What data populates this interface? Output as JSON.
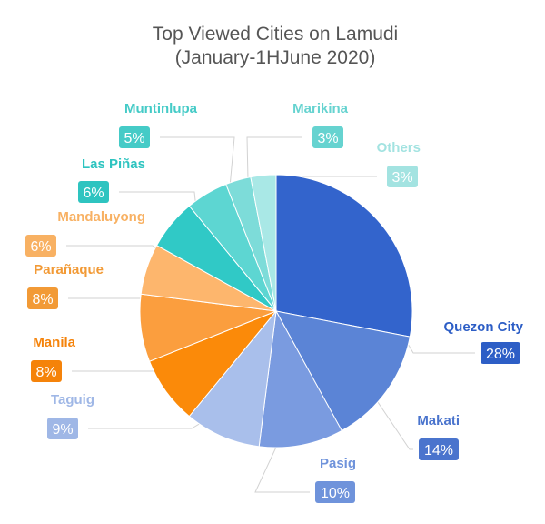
{
  "chart_data": {
    "type": "pie",
    "title": [
      "Top Viewed Cities on Lamudi",
      "(January-1HJune 2020)"
    ],
    "slices": [
      {
        "label": "Quezon City",
        "value": 28,
        "value_label": "28%",
        "color": "#3364cc",
        "text_color": "#2d5ec6"
      },
      {
        "label": "Makati",
        "value": 14,
        "value_label": "14%",
        "color": "#5b84d6",
        "text_color": "#4a74cd"
      },
      {
        "label": "Pasig",
        "value": 10,
        "value_label": "10%",
        "color": "#7a9be0",
        "text_color": "#6f93db"
      },
      {
        "label": "Taguig",
        "value": 9,
        "value_label": "9%",
        "color": "#a9bfeb",
        "text_color": "#9fb7e6"
      },
      {
        "label": "Manila",
        "value": 8,
        "value_label": "8%",
        "color": "#fb8a09",
        "text_color": "#f5830a"
      },
      {
        "label": "Parañaque",
        "value": 8,
        "value_label": "8%",
        "color": "#fb9e3e",
        "text_color": "#f29a36"
      },
      {
        "label": "Mandaluyong",
        "value": 6,
        "value_label": "6%",
        "color": "#fdb66d",
        "text_color": "#f8b163"
      },
      {
        "label": "Las Piñas",
        "value": 6,
        "value_label": "6%",
        "color": "#30c9c6",
        "text_color": "#2ec4c0"
      },
      {
        "label": "Muntinlupa",
        "value": 5,
        "value_label": "5%",
        "color": "#5dd6d2",
        "text_color": "#45cbc7"
      },
      {
        "label": "Marikina",
        "value": 3,
        "value_label": "3%",
        "color": "#7ddcd9",
        "text_color": "#66d3d0"
      },
      {
        "label": "Others",
        "value": 3,
        "value_label": "3%",
        "color": "#a9e8e6",
        "text_color": "#a3e3e1"
      }
    ]
  }
}
